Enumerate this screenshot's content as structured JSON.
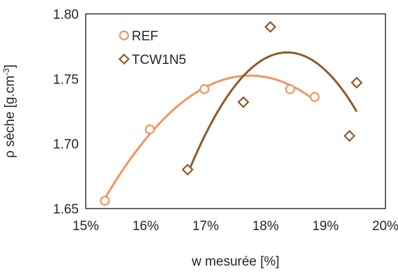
{
  "chart_data": {
    "type": "scatter",
    "xlabel": "w mesurée  [%]",
    "ylabel_main": "ρ sèche [g.cm",
    "ylabel_sup": "-3",
    "ylabel_close": "]",
    "xlim": [
      0.15,
      0.2
    ],
    "ylim": [
      1.65,
      1.8
    ],
    "xticks": [
      0.15,
      0.16,
      0.17,
      0.18,
      0.19,
      0.2
    ],
    "xtick_labels": [
      "15%",
      "16%",
      "17%",
      "18%",
      "19%",
      "20%"
    ],
    "yticks": [
      1.65,
      1.7,
      1.75,
      1.8
    ],
    "ytick_labels": [
      "1.65",
      "1.70",
      "1.75",
      "1.80"
    ],
    "grid": false,
    "legend_position": "top-left",
    "series": [
      {
        "name": "REF",
        "marker": "circle",
        "color": "#F0955E",
        "x": [
          0.1532,
          0.1607,
          0.1698,
          0.1841,
          0.1882
        ],
        "y": [
          1.656,
          1.711,
          1.742,
          1.742,
          1.736
        ],
        "trendline": {
          "type": "poly2",
          "x_start": 0.1532,
          "x_end": 0.1882
        }
      },
      {
        "name": "TCW1N5",
        "marker": "diamond",
        "color": "#8B5A2B",
        "x": [
          0.167,
          0.1763,
          0.1808,
          0.194,
          0.1952
        ],
        "y": [
          1.68,
          1.732,
          1.79,
          1.706,
          1.747
        ],
        "trendline": {
          "type": "poly2",
          "x_start": 0.167,
          "x_end": 0.1952
        }
      }
    ]
  }
}
